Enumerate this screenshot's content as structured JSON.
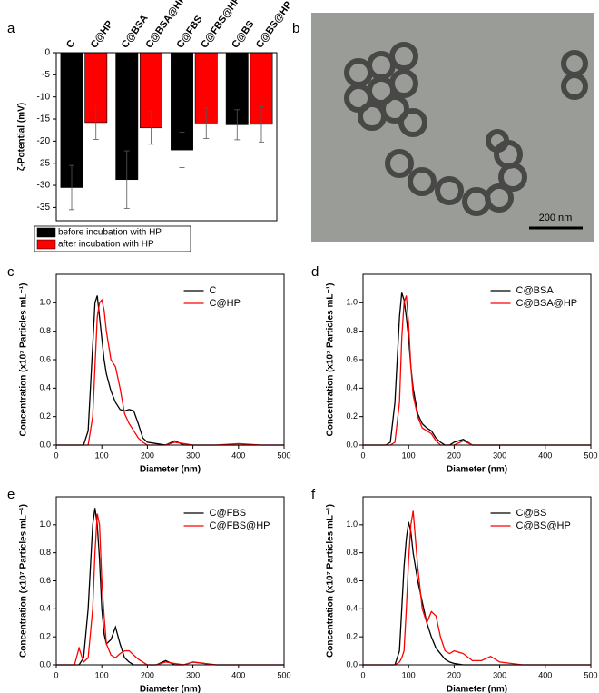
{
  "image_panel": {
    "label": "b",
    "scale_bar": "200 nm"
  },
  "chart_data": [
    {
      "type": "bar",
      "label": "a",
      "ylabel": "ζ-Potential (mV)",
      "categories": [
        "C",
        "C@HP",
        "C@BSA",
        "C@BSA@HP",
        "C@FBS",
        "C@FBS@HP",
        "C@BS",
        "C@BS@HP"
      ],
      "series": [
        {
          "name": "before incubation with HP",
          "color": "#000000",
          "values": [
            -30.5,
            null,
            -28.7,
            null,
            -22,
            null,
            -16.3,
            null
          ],
          "errors": [
            5,
            null,
            6.5,
            null,
            4,
            null,
            3.4,
            null
          ]
        },
        {
          "name": "after incubation with HP",
          "color": "#ff0000",
          "values": [
            null,
            -15.8,
            null,
            -17,
            null,
            -15.9,
            null,
            -16.2
          ],
          "errors": [
            null,
            3.8,
            null,
            3.7,
            null,
            3.5,
            null,
            4
          ]
        }
      ],
      "ylim": [
        -38,
        0
      ],
      "yticks": [
        0,
        -5,
        -10,
        -15,
        -20,
        -25,
        -30,
        -35
      ],
      "legend": "bottom"
    },
    {
      "type": "line",
      "label": "c",
      "xlabel": "Diameter (nm)",
      "ylabel": "Concentration (x10⁷ Particles mL⁻¹)",
      "x": [
        0,
        40,
        50,
        60,
        70,
        80,
        85,
        90,
        95,
        100,
        105,
        110,
        120,
        130,
        140,
        150,
        160,
        170,
        180,
        190,
        200,
        220,
        240,
        260,
        280,
        300,
        350,
        400,
        450,
        500
      ],
      "series": [
        {
          "name": "C",
          "color": "#000000",
          "values": [
            0,
            0,
            0,
            0,
            0.1,
            0.7,
            1.0,
            1.05,
            0.9,
            0.75,
            0.6,
            0.5,
            0.38,
            0.3,
            0.25,
            0.24,
            0.25,
            0.24,
            0.15,
            0.05,
            0.02,
            0.01,
            0,
            0.03,
            0,
            0,
            0,
            0,
            0,
            0
          ]
        },
        {
          "name": "C@HP",
          "color": "#ff0000",
          "values": [
            0,
            0,
            0,
            0,
            0,
            0.2,
            0.55,
            0.9,
            1.0,
            1.02,
            0.95,
            0.8,
            0.6,
            0.55,
            0.4,
            0.22,
            0.15,
            0.1,
            0.05,
            0.02,
            0,
            0,
            0,
            0.02,
            0.01,
            0,
            0,
            0.01,
            0,
            0
          ]
        }
      ],
      "xlim": [
        0,
        500
      ],
      "xticks": [
        0,
        100,
        200,
        300,
        400,
        500
      ],
      "ylim": [
        0,
        1.2
      ],
      "yticks": [
        {
          "value": 0,
          "label": "0.0"
        },
        0.2,
        0.4,
        0.6,
        0.8,
        {
          "value": 1,
          "label": "1.0"
        }
      ],
      "legend": "top-right"
    },
    {
      "type": "line",
      "label": "d",
      "xlabel": "Diameter (nm)",
      "ylabel": "Concentration (x10⁷ Particles mL⁻¹)",
      "x": [
        0,
        40,
        50,
        60,
        70,
        80,
        85,
        90,
        95,
        100,
        105,
        110,
        120,
        130,
        140,
        150,
        160,
        170,
        180,
        190,
        200,
        220,
        240,
        260,
        280,
        300,
        350,
        400,
        450,
        500
      ],
      "series": [
        {
          "name": "C@BSA",
          "color": "#000000",
          "values": [
            0,
            0,
            0,
            0.02,
            0.3,
            0.9,
            1.07,
            1.02,
            0.9,
            0.75,
            0.55,
            0.4,
            0.22,
            0.15,
            0.12,
            0.1,
            0.05,
            0.02,
            0,
            0,
            0.02,
            0.04,
            0,
            0,
            0,
            0,
            0,
            0,
            0,
            0
          ]
        },
        {
          "name": "C@BSA@HP",
          "color": "#ff0000",
          "values": [
            0,
            0,
            0,
            0,
            0.02,
            0.3,
            0.75,
            1.0,
            1.05,
            0.85,
            0.55,
            0.35,
            0.2,
            0.12,
            0.1,
            0.08,
            0.03,
            0,
            0,
            0,
            0,
            0.03,
            0,
            0,
            0,
            0,
            0,
            0,
            0,
            0
          ]
        }
      ],
      "xlim": [
        0,
        500
      ],
      "xticks": [
        0,
        100,
        200,
        300,
        400,
        500
      ],
      "ylim": [
        0,
        1.2
      ],
      "yticks": [
        {
          "value": 0,
          "label": "0.0"
        },
        0.2,
        0.4,
        0.6,
        0.8,
        {
          "value": 1,
          "label": "1.0"
        }
      ],
      "legend": "top-right"
    },
    {
      "type": "line",
      "label": "e",
      "xlabel": "Diameter (nm)",
      "ylabel": "Concentration (x10⁷ Particles mL⁻¹)",
      "x": [
        0,
        40,
        50,
        60,
        70,
        80,
        85,
        90,
        95,
        100,
        105,
        110,
        120,
        130,
        140,
        150,
        160,
        170,
        180,
        190,
        200,
        220,
        240,
        260,
        280,
        300,
        350,
        400,
        450,
        500
      ],
      "series": [
        {
          "name": "C@FBS",
          "color": "#000000",
          "values": [
            0,
            0,
            0,
            0.05,
            0.4,
            1.0,
            1.12,
            1.0,
            0.75,
            0.4,
            0.22,
            0.15,
            0.18,
            0.27,
            0.15,
            0.05,
            0.02,
            0,
            0,
            0,
            0,
            0,
            0.03,
            0,
            0,
            0.02,
            0,
            0,
            0,
            0
          ]
        },
        {
          "name": "C@FBS@HP",
          "color": "#ff0000",
          "values": [
            0,
            0,
            0.12,
            0.02,
            0.05,
            0.4,
            0.8,
            1.08,
            1.0,
            0.6,
            0.35,
            0.15,
            0.07,
            0.05,
            0.08,
            0.1,
            0.1,
            0.07,
            0.04,
            0.02,
            0,
            0,
            0.02,
            0.01,
            0,
            0.02,
            0,
            0,
            0,
            0
          ]
        }
      ],
      "xlim": [
        0,
        500
      ],
      "xticks": [
        0,
        100,
        200,
        300,
        400,
        500
      ],
      "ylim": [
        0,
        1.2
      ],
      "yticks": [
        {
          "value": 0,
          "label": "0.0"
        },
        0.2,
        0.4,
        0.6,
        0.8,
        {
          "value": 1,
          "label": "1.0"
        }
      ],
      "legend": "top-right"
    },
    {
      "type": "line",
      "label": "f",
      "xlabel": "Diameter (nm)",
      "ylabel": "Concentration (x10⁷ Particles mL⁻¹)",
      "x": [
        0,
        40,
        50,
        60,
        70,
        80,
        85,
        90,
        95,
        100,
        105,
        110,
        120,
        130,
        140,
        150,
        160,
        170,
        180,
        190,
        200,
        220,
        240,
        260,
        280,
        300,
        350,
        400,
        450,
        500
      ],
      "series": [
        {
          "name": "C@BS",
          "color": "#000000",
          "values": [
            0,
            0,
            0,
            0,
            0,
            0.1,
            0.4,
            0.7,
            0.9,
            1.02,
            0.95,
            0.8,
            0.6,
            0.45,
            0.3,
            0.2,
            0.12,
            0.08,
            0.04,
            0.02,
            0.01,
            0,
            0,
            0,
            0,
            0,
            0,
            0,
            0,
            0
          ]
        },
        {
          "name": "C@BS@HP",
          "color": "#ff0000",
          "values": [
            0,
            0,
            0,
            0,
            0,
            0.02,
            0.05,
            0.1,
            0.4,
            0.75,
            1.0,
            1.1,
            0.7,
            0.4,
            0.3,
            0.38,
            0.35,
            0.2,
            0.1,
            0.08,
            0.1,
            0.08,
            0.03,
            0.03,
            0.06,
            0.02,
            0,
            0,
            0,
            0
          ]
        }
      ],
      "xlim": [
        0,
        500
      ],
      "xticks": [
        0,
        100,
        200,
        300,
        400,
        500
      ],
      "ylim": [
        0,
        1.2
      ],
      "yticks": [
        {
          "value": 0,
          "label": "0.0"
        },
        0.2,
        0.4,
        0.6,
        0.8,
        {
          "value": 1,
          "label": "1.0"
        }
      ],
      "legend": "top-right"
    }
  ]
}
